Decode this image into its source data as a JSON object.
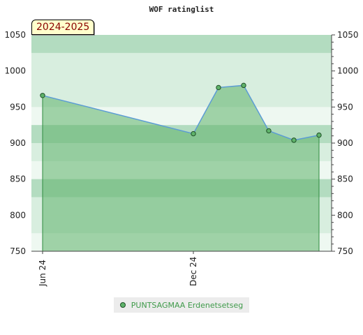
{
  "chart_data": {
    "type": "line",
    "title": "WOF ratinglist",
    "season_label": "2024-2025",
    "ylim": [
      750,
      1050
    ],
    "y_ticks": [
      750,
      800,
      850,
      900,
      950,
      1000,
      1050
    ],
    "x_tick_labels": [
      {
        "label": "Jun 24",
        "x": "2024-06"
      },
      {
        "label": "Dec 24",
        "x": "2024-12"
      }
    ],
    "series": [
      {
        "name": "PUNTSAGMAA Erdenetsetseg",
        "points": [
          {
            "x": "2024-06",
            "y": 966
          },
          {
            "x": "2024-12",
            "y": 913
          },
          {
            "x": "2025-01",
            "y": 977
          },
          {
            "x": "2025-02",
            "y": 980
          },
          {
            "x": "2025-03",
            "y": 917
          },
          {
            "x": "2025-04",
            "y": 904
          },
          {
            "x": "2025-05",
            "y": 911
          }
        ]
      }
    ],
    "colors": {
      "line": "#5b9bd5",
      "fill": "#5fb36a",
      "marker": "#5fb36a",
      "band_dark": "#b3dcc0",
      "band_light": "#d8eedf",
      "band_pale": "#eef8f1",
      "legend_text": "#3f9a4a",
      "season_text": "#8b0000"
    },
    "grid": false,
    "legend_position": "bottom"
  }
}
